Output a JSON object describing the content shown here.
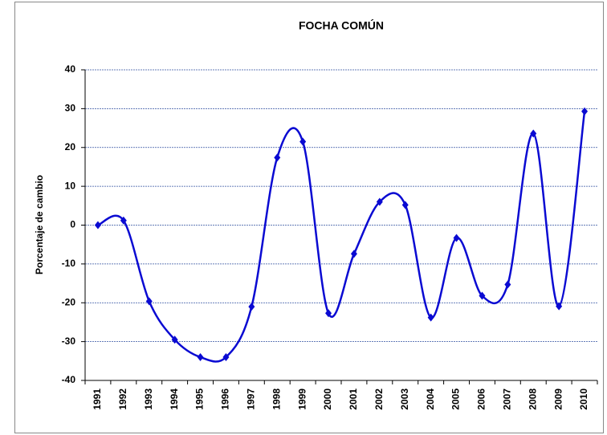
{
  "chart_data": {
    "type": "line",
    "title": "FOCHA COMÚN",
    "y_label": "Porcentaje de cambio",
    "categories": [
      "1991",
      "1992",
      "1993",
      "1994",
      "1995",
      "1996",
      "1997",
      "1998",
      "1999",
      "2000",
      "2001",
      "2002",
      "2003",
      "2004",
      "2005",
      "2006",
      "2007",
      "2008",
      "2009",
      "2010"
    ],
    "series": [
      {
        "name": "FOCHA COMÚN",
        "color": "#0a0ad2",
        "values": [
          0,
          1.2,
          -19.6,
          -29.5,
          -34,
          -34,
          -21,
          17.4,
          21.5,
          -22.7,
          -7.4,
          6,
          5.2,
          -23.8,
          -3.3,
          -18.2,
          -15.3,
          23.6,
          -20.9,
          29.3
        ]
      }
    ],
    "ylim": [
      -40,
      40
    ],
    "yticks": [
      -40,
      -30,
      -20,
      -10,
      0,
      10,
      20,
      30,
      40
    ],
    "grid": true,
    "smooth": true
  }
}
